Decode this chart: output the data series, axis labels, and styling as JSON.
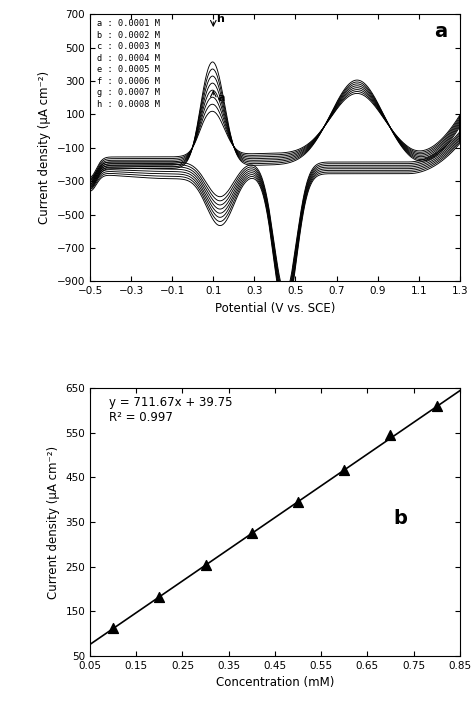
{
  "panel_a_label": "a",
  "panel_b_label": "b",
  "legend_entries": [
    "a : 0.0001 M",
    "b : 0.0002 M",
    "c : 0.0003 M",
    "d : 0.0004 M",
    "e : 0.0005 M",
    "f : 0.0006 M",
    "g : 0.0007 M",
    "h : 0.0008 M"
  ],
  "conc_mM": [
    0.1,
    0.2,
    0.3,
    0.4,
    0.5,
    0.6,
    0.7,
    0.8
  ],
  "peak_currents": [
    111.42,
    181.09,
    253.0,
    324.43,
    395.59,
    466.75,
    545.92,
    610.11
  ],
  "slope": 711.67,
  "intercept": 39.75,
  "r2": 0.997,
  "xlabel_a": "Potential (V vs. SCE)",
  "ylabel_a": "Current density (μA cm⁻²)",
  "xlabel_b": "Concentration (mM)",
  "ylabel_b": "Current density (μA cm⁻²)",
  "xlim_a": [
    -0.5,
    1.3
  ],
  "ylim_a": [
    -900,
    700
  ],
  "xlim_b": [
    0.05,
    0.85
  ],
  "ylim_b": [
    50,
    650
  ],
  "xticks_a": [
    -0.5,
    -0.3,
    -0.1,
    0.1,
    0.3,
    0.5,
    0.7,
    0.9,
    1.1,
    1.3
  ],
  "yticks_a": [
    -900,
    -700,
    -500,
    -300,
    -100,
    100,
    300,
    500,
    700
  ],
  "xticks_b": [
    0.05,
    0.15,
    0.25,
    0.35,
    0.45,
    0.55,
    0.65,
    0.75,
    0.85
  ],
  "yticks_b": [
    50,
    150,
    250,
    350,
    450,
    550,
    650
  ],
  "concentrations": [
    0.0001,
    0.0002,
    0.0003,
    0.0004,
    0.0005,
    0.0006,
    0.0007,
    0.0008
  ],
  "n_curves": 8
}
